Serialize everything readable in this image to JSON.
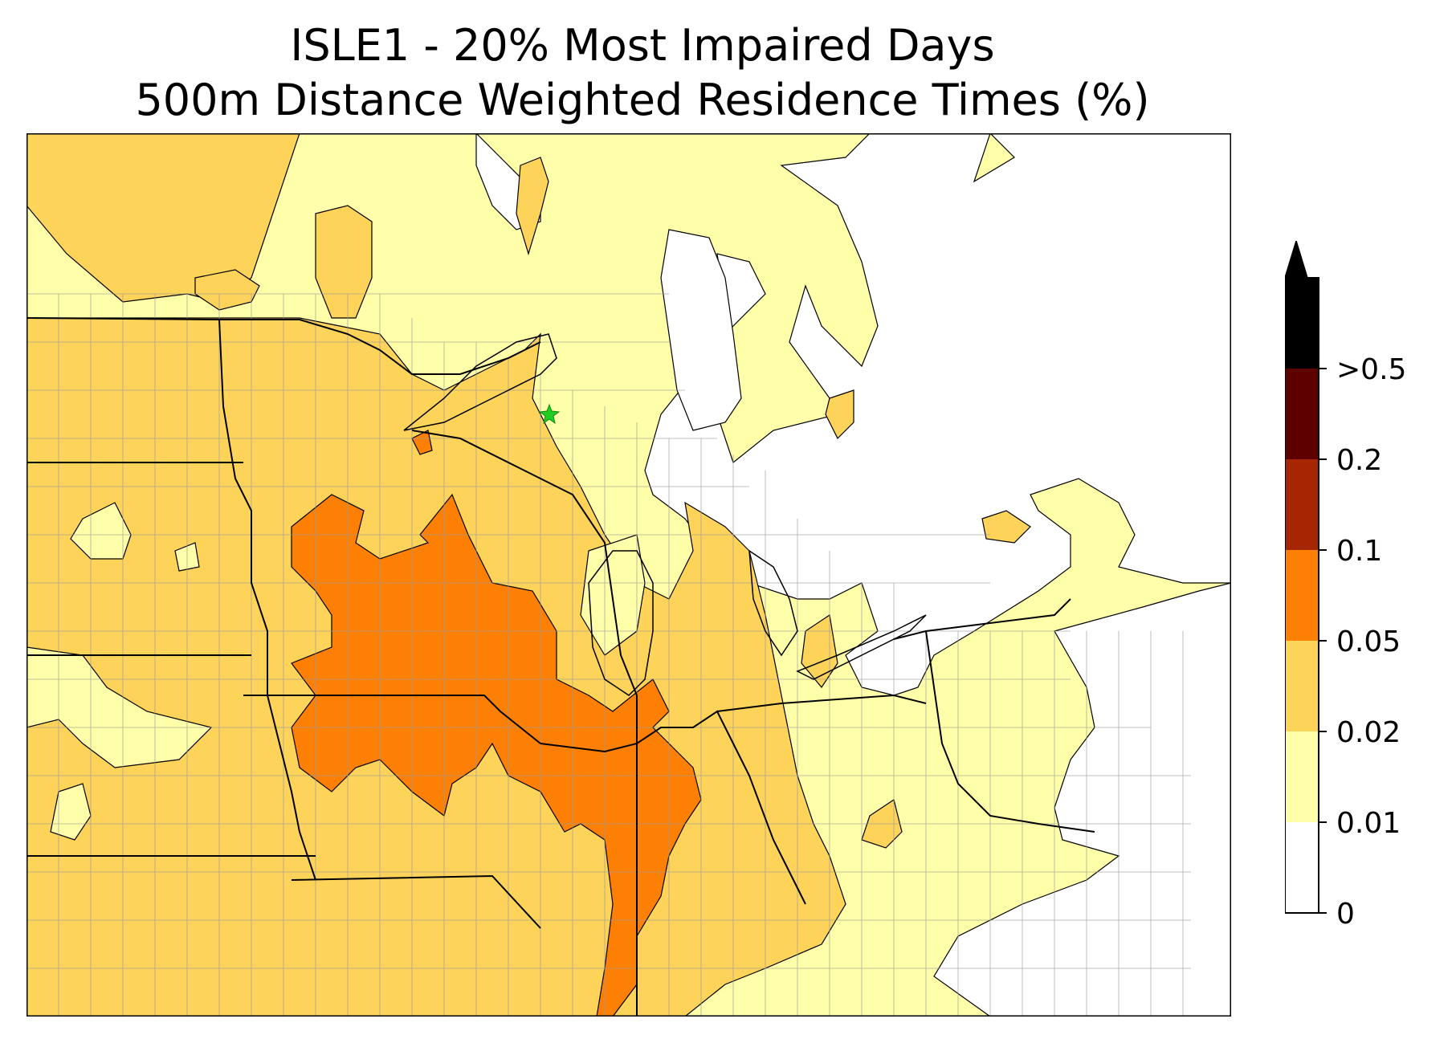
{
  "title": {
    "line1": "ISLE1 - 20% Most Impaired Days",
    "line2": "500m Distance Weighted Residence Times (%)"
  },
  "colorbar": {
    "levels": [
      "0",
      "0.01",
      "0.02",
      "0.05",
      "0.1",
      "0.2",
      ">0.5"
    ],
    "colors": [
      "#ffffff",
      "#ffffaa",
      "#fdd35a",
      "#fd8005",
      "#a62502",
      "#5e0000",
      "#000000"
    ],
    "extend": "max"
  },
  "map": {
    "colors": {
      "none": "#ffffff",
      "low": "#ffffaa",
      "mid": "#fdd35a",
      "high": "#fd8005",
      "county_lines": "#999999",
      "state_lines": "#000000"
    },
    "site_marker": {
      "symbol": "star",
      "color": "#22cc22"
    }
  }
}
